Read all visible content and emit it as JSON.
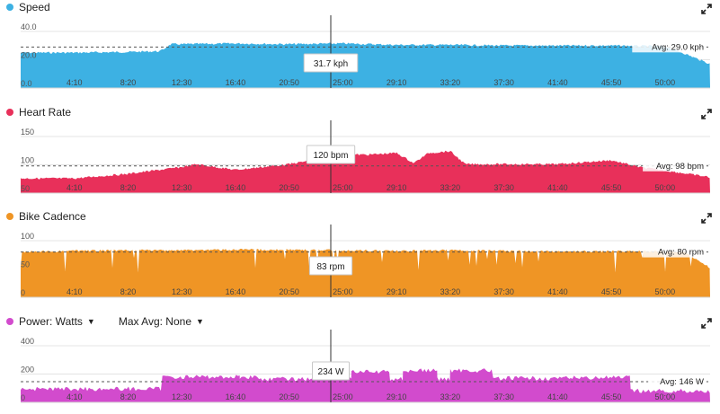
{
  "x_ticks": [
    "4:10",
    "8:20",
    "12:30",
    "16:40",
    "20:50",
    "25:00",
    "29:10",
    "33:20",
    "37:30",
    "41:40",
    "45:50",
    "50:00"
  ],
  "panels": [
    {
      "key": "speed",
      "title": "Speed",
      "color": "#3db1e3",
      "y_ticks": [
        "40.0",
        "20.0",
        "0.0"
      ],
      "y_min": 0,
      "y_max": 40,
      "tick_values": [
        40,
        20,
        0
      ],
      "avg_value": 29,
      "avg_label": "Avg: 29.0 kph",
      "tooltip": "31.7 kph",
      "chart_data": {
        "type": "area",
        "x_unit": "elapsed time",
        "x": [
          "0:00",
          "4:10",
          "8:20",
          "10:50",
          "11:40",
          "12:30",
          "16:40",
          "20:50",
          "25:00",
          "29:10",
          "33:20",
          "37:30",
          "41:40",
          "45:50",
          "50:00",
          "51:20",
          "53:30"
        ],
        "y": [
          25,
          25,
          25.5,
          26,
          31,
          31,
          31.5,
          31,
          31.5,
          30.5,
          30.5,
          30,
          30,
          30,
          29.5,
          25,
          17
        ]
      }
    },
    {
      "key": "heart",
      "title": "Heart Rate",
      "color": "#e8305a",
      "y_ticks": [
        "150",
        "100",
        "50"
      ],
      "y_min": 50,
      "y_max": 150,
      "tick_values": [
        150,
        100,
        50
      ],
      "avg_value": 98,
      "avg_label": "Avg: 98 bpm",
      "tooltip": "120 bpm",
      "chart_data": {
        "type": "area",
        "x_unit": "elapsed time",
        "x": [
          "0:00",
          "4:10",
          "8:20",
          "12:30",
          "13:40",
          "16:40",
          "20:50",
          "25:00",
          "27:00",
          "29:10",
          "30:30",
          "31:40",
          "33:20",
          "34:30",
          "37:30",
          "41:40",
          "45:50",
          "48:00",
          "50:00",
          "53:30"
        ],
        "y": [
          76,
          76,
          84,
          96,
          101,
          91,
          101,
          118,
          118,
          121,
          103,
          121,
          124,
          101,
          101,
          101,
          108,
          96,
          90,
          78
        ]
      }
    },
    {
      "key": "cadence",
      "title": "Bike Cadence",
      "color": "#ef9525",
      "y_ticks": [
        "100",
        "50",
        "0"
      ],
      "y_min": 0,
      "y_max": 100,
      "tick_values": [
        100,
        50,
        0
      ],
      "avg_value": 80,
      "avg_label": "Avg: 80 rpm",
      "tooltip": "83 rpm",
      "chart_data": {
        "type": "area",
        "x_unit": "elapsed time",
        "x": [
          "0:00",
          "4:10",
          "8:20",
          "12:30",
          "16:40",
          "20:50",
          "25:00",
          "29:10",
          "33:20",
          "37:30",
          "41:40",
          "45:50",
          "50:00",
          "51:30",
          "53:30"
        ],
        "y": [
          80,
          82,
          83,
          83,
          84,
          84,
          83,
          82,
          83,
          82,
          81,
          81,
          82,
          80,
          52
        ]
      }
    },
    {
      "key": "power",
      "title": "Power: Watts",
      "dropdown": true,
      "max_avg_label": "Max Avg: None",
      "color": "#d24bcd",
      "y_ticks": [
        "400",
        "200",
        "0"
      ],
      "y_min": 0,
      "y_max": 400,
      "tick_values": [
        400,
        200,
        0
      ],
      "avg_value": 146,
      "avg_label": "Avg: 146 W",
      "tooltip": "234 W",
      "chart_data": {
        "type": "step",
        "x_unit": "elapsed time",
        "x": [
          "0:00",
          "7:40",
          "11:00",
          "17:00",
          "18:30",
          "23:00",
          "25:40",
          "28:40",
          "29:40",
          "32:20",
          "33:20",
          "36:40",
          "37:30",
          "42:20",
          "42:40",
          "47:20",
          "53:30"
        ],
        "y": [
          95,
          95,
          180,
          180,
          165,
          180,
          215,
          165,
          225,
          165,
          225,
          165,
          170,
          170,
          175,
          80,
          60
        ]
      }
    }
  ]
}
